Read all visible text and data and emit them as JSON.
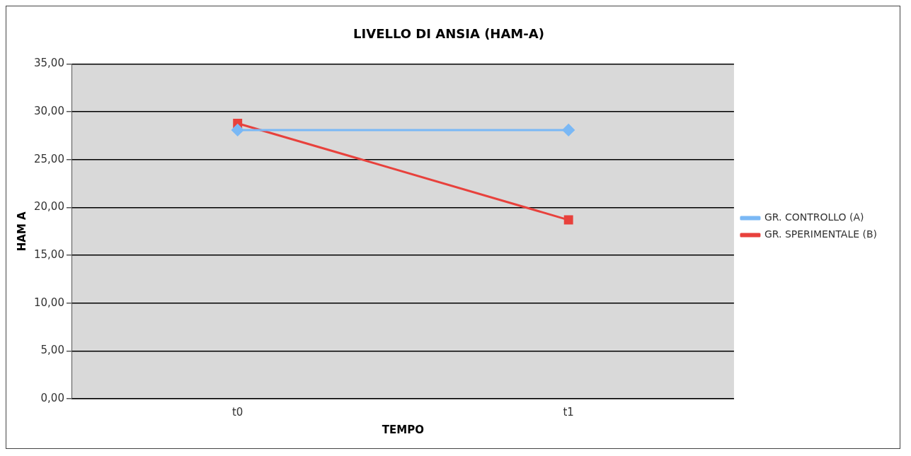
{
  "chart_data": {
    "type": "line",
    "title": "LIVELLO DI ANSIA (HAM-A)",
    "xlabel": "TEMPO",
    "ylabel": "HAM A",
    "categories": [
      "t0",
      "t1"
    ],
    "series": [
      {
        "name": "GR. CONTROLLO (A)",
        "color": "#7ab8f5",
        "values": [
          28.1,
          28.1
        ],
        "marker": "diamond"
      },
      {
        "name": "GR. SPERIMENTALE (B)",
        "color": "#e8413c",
        "values": [
          28.8,
          18.7
        ],
        "marker": "square"
      }
    ],
    "ylim": [
      0,
      35
    ],
    "yticks": [
      {
        "value": 0,
        "label": "0,00"
      },
      {
        "value": 5,
        "label": "5,00"
      },
      {
        "value": 10,
        "label": "10,00"
      },
      {
        "value": 15,
        "label": "15,00"
      },
      {
        "value": 20,
        "label": "20,00"
      },
      {
        "value": 25,
        "label": "25,00"
      },
      {
        "value": 30,
        "label": "30,00"
      },
      {
        "value": 35,
        "label": "35,00"
      }
    ],
    "grid": "y",
    "legend": "right"
  }
}
